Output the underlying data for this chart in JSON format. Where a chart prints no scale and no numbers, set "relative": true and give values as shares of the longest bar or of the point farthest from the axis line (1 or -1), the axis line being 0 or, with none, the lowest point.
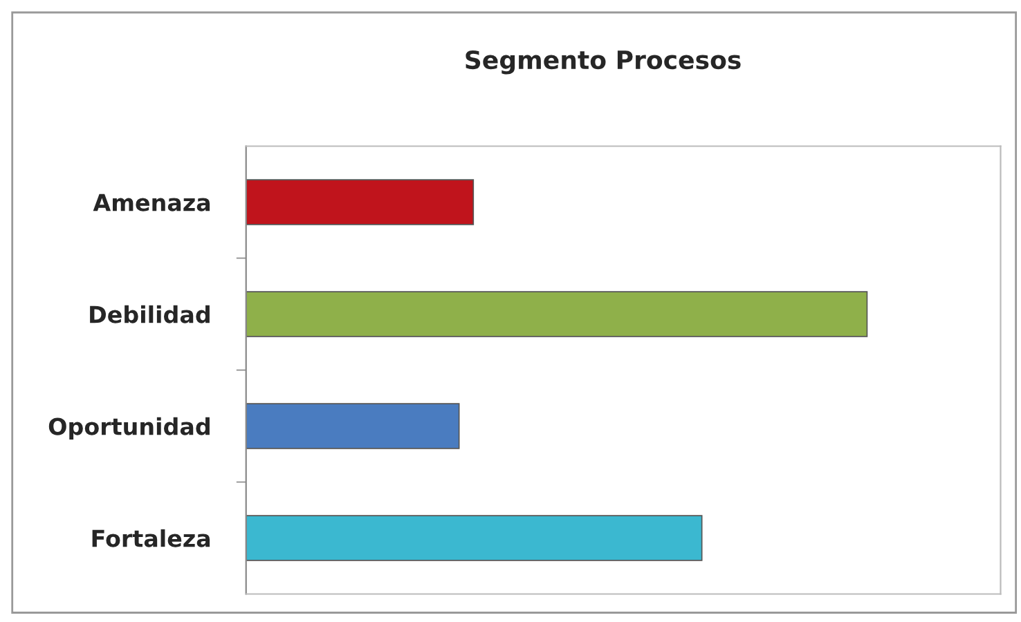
{
  "chart_data": {
    "type": "bar",
    "title": "Segmento Procesos",
    "orientation": "horizontal",
    "relative": true,
    "categories": [
      "Amenaza",
      "Debilidad",
      "Oportunidad",
      "Fortaleza"
    ],
    "values": [
      0.366,
      1,
      0.343,
      0.734
    ],
    "colors": [
      "#c0141c",
      "#8fb04a",
      "#4a7cc0",
      "#3bb8d0"
    ]
  }
}
